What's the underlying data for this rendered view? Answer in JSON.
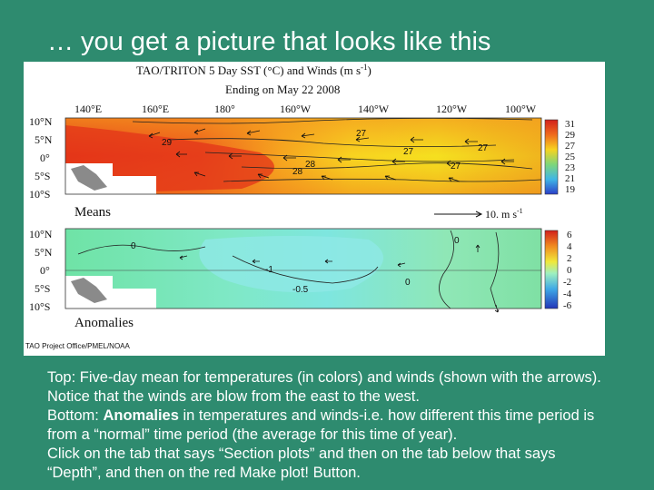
{
  "slide": {
    "title": "… you get a picture that looks like this",
    "background_color": "#2e8b6f"
  },
  "figure": {
    "title_line1": "TAO/TRITON 5 Day SST (°C) and Winds (m s",
    "title_superscript": "-1",
    "title_close": ")",
    "title_line2": "Ending on May 22 2008",
    "longitude_labels": [
      "140°E",
      "160°E",
      "180°",
      "160°W",
      "140°W",
      "120°W",
      "100°W"
    ],
    "latitude_labels": [
      "10°N",
      "5°N",
      "0°",
      "5°S",
      "10°S"
    ],
    "means_panel": {
      "label": "Means",
      "contour_labels": [
        "29",
        "27",
        "27",
        "27",
        "28",
        "28",
        "27"
      ],
      "colorbar_ticks": [
        "31",
        "29",
        "27",
        "25",
        "23",
        "21",
        "19"
      ],
      "wind_scale_label": "10. m s",
      "wind_scale_superscript": "-1"
    },
    "anomalies_panel": {
      "label": "Anomalies",
      "contour_labels": [
        "0",
        "-1",
        "-0.5",
        "0",
        "0"
      ],
      "colorbar_ticks": [
        "6",
        "4",
        "2",
        "0",
        "-2",
        "-4",
        "-6"
      ]
    },
    "credit": "TAO Project Office/PMEL/NOAA"
  },
  "caption": {
    "line1": "Top: Five-day mean for temperatures (in colors) and winds (shown with the arrows). Notice that the winds are blow from the east to the west.",
    "line2_bold": "Anomalies",
    "line2_prefix": "Bottom: ",
    "line2_rest": " in temperatures and winds-i.e. how different this time period is from a “normal” time period (the average for this time of year).",
    "line3": "Click on the tab that says “Section plots” and then on the tab below that says “Depth”, and then on the red Make plot! Button."
  }
}
